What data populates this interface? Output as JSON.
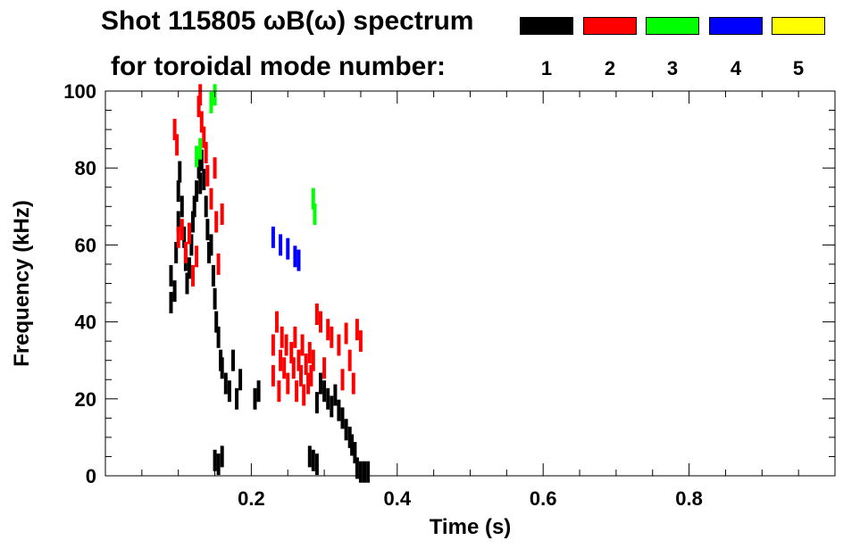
{
  "header": {
    "title_line1": "Shot 115805 ωB(ω) spectrum",
    "title_line2": "for toroidal mode number:"
  },
  "legend": [
    {
      "mode": "1",
      "color": "#000000"
    },
    {
      "mode": "2",
      "color": "#ff0000"
    },
    {
      "mode": "3",
      "color": "#00ff00"
    },
    {
      "mode": "4",
      "color": "#0000ff"
    },
    {
      "mode": "5",
      "color": "#ffff00"
    }
  ],
  "chart_data": {
    "type": "heatmap",
    "title": "Shot 115805 ωB(ω) spectrum for toroidal mode number",
    "xlabel": "Time (s)",
    "ylabel": "Frequency (kHz)",
    "xlim": [
      0.0,
      1.0
    ],
    "ylim": [
      0,
      100
    ],
    "xticks": [
      0.2,
      0.4,
      0.6,
      0.8
    ],
    "xtick_labels": [
      "0.2",
      "0.4",
      "0.6",
      "0.8"
    ],
    "yticks": [
      0,
      20,
      40,
      60,
      80,
      100
    ],
    "ytick_labels": [
      "0",
      "20",
      "40",
      "60",
      "80",
      "100"
    ],
    "grid": false,
    "legend_position": "top-right",
    "series": [
      {
        "name": "1",
        "color": "#000000",
        "points": [
          [
            0.09,
            45
          ],
          [
            0.09,
            52
          ],
          [
            0.095,
            48
          ],
          [
            0.097,
            58
          ],
          [
            0.1,
            66
          ],
          [
            0.1,
            74
          ],
          [
            0.102,
            79
          ],
          [
            0.105,
            70
          ],
          [
            0.108,
            62
          ],
          [
            0.11,
            56
          ],
          [
            0.112,
            50
          ],
          [
            0.115,
            54
          ],
          [
            0.118,
            60
          ],
          [
            0.12,
            66
          ],
          [
            0.122,
            70
          ],
          [
            0.125,
            74
          ],
          [
            0.128,
            80
          ],
          [
            0.13,
            76
          ],
          [
            0.132,
            82
          ],
          [
            0.135,
            77
          ],
          [
            0.138,
            70
          ],
          [
            0.14,
            64
          ],
          [
            0.142,
            58
          ],
          [
            0.145,
            60
          ],
          [
            0.148,
            52
          ],
          [
            0.15,
            46
          ],
          [
            0.152,
            40
          ],
          [
            0.155,
            36
          ],
          [
            0.158,
            30
          ],
          [
            0.16,
            28
          ],
          [
            0.165,
            24
          ],
          [
            0.17,
            22
          ],
          [
            0.175,
            30
          ],
          [
            0.18,
            20
          ],
          [
            0.185,
            25
          ],
          [
            0.15,
            4
          ],
          [
            0.155,
            3
          ],
          [
            0.16,
            5
          ],
          [
            0.205,
            20
          ],
          [
            0.21,
            22
          ],
          [
            0.28,
            5
          ],
          [
            0.285,
            4
          ],
          [
            0.29,
            3
          ],
          [
            0.29,
            19
          ],
          [
            0.295,
            24
          ],
          [
            0.3,
            22
          ],
          [
            0.305,
            20
          ],
          [
            0.31,
            18
          ],
          [
            0.315,
            21
          ],
          [
            0.32,
            17
          ],
          [
            0.325,
            15
          ],
          [
            0.33,
            12
          ],
          [
            0.335,
            10
          ],
          [
            0.338,
            8
          ],
          [
            0.342,
            6
          ],
          [
            0.345,
            2
          ],
          [
            0.35,
            1
          ],
          [
            0.355,
            1
          ],
          [
            0.36,
            1
          ]
        ]
      },
      {
        "name": "2",
        "color": "#ff0000",
        "points": [
          [
            0.095,
            90
          ],
          [
            0.098,
            86
          ],
          [
            0.1,
            62
          ],
          [
            0.105,
            64
          ],
          [
            0.11,
            58
          ],
          [
            0.115,
            63
          ],
          [
            0.12,
            52
          ],
          [
            0.125,
            57
          ],
          [
            0.128,
            96
          ],
          [
            0.13,
            99
          ],
          [
            0.132,
            92
          ],
          [
            0.135,
            88
          ],
          [
            0.138,
            84
          ],
          [
            0.14,
            78
          ],
          [
            0.145,
            72
          ],
          [
            0.15,
            80
          ],
          [
            0.152,
            66
          ],
          [
            0.155,
            55
          ],
          [
            0.16,
            68
          ],
          [
            0.23,
            26
          ],
          [
            0.23,
            34
          ],
          [
            0.235,
            40
          ],
          [
            0.238,
            22
          ],
          [
            0.24,
            30
          ],
          [
            0.242,
            36
          ],
          [
            0.245,
            28
          ],
          [
            0.248,
            34
          ],
          [
            0.25,
            24
          ],
          [
            0.255,
            32
          ],
          [
            0.258,
            28
          ],
          [
            0.26,
            36
          ],
          [
            0.262,
            22
          ],
          [
            0.265,
            30
          ],
          [
            0.268,
            26
          ],
          [
            0.27,
            34
          ],
          [
            0.272,
            21
          ],
          [
            0.275,
            29
          ],
          [
            0.278,
            24
          ],
          [
            0.28,
            32
          ],
          [
            0.282,
            26
          ],
          [
            0.285,
            30
          ],
          [
            0.29,
            42
          ],
          [
            0.295,
            40
          ],
          [
            0.3,
            28
          ],
          [
            0.305,
            38
          ],
          [
            0.31,
            36
          ],
          [
            0.32,
            34
          ],
          [
            0.325,
            25
          ],
          [
            0.33,
            37
          ],
          [
            0.335,
            30
          ],
          [
            0.34,
            24
          ],
          [
            0.345,
            38
          ],
          [
            0.35,
            35
          ]
        ]
      },
      {
        "name": "3",
        "color": "#00ff00",
        "points": [
          [
            0.125,
            83
          ],
          [
            0.13,
            85
          ],
          [
            0.145,
            97
          ],
          [
            0.15,
            99
          ],
          [
            0.285,
            72
          ],
          [
            0.287,
            68
          ]
        ]
      },
      {
        "name": "4",
        "color": "#0000ff",
        "points": [
          [
            0.23,
            62
          ],
          [
            0.24,
            60
          ],
          [
            0.25,
            59
          ],
          [
            0.26,
            57
          ],
          [
            0.265,
            56
          ]
        ]
      },
      {
        "name": "5",
        "color": "#ffff00",
        "points": []
      }
    ]
  }
}
